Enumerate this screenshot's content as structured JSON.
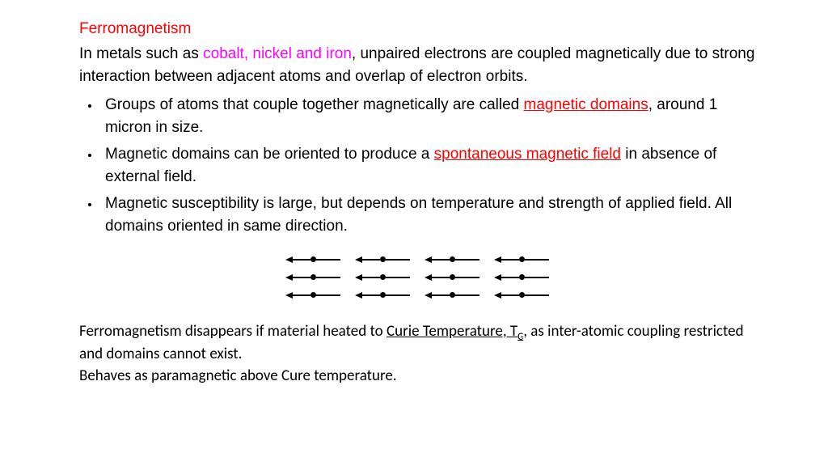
{
  "title": "Ferromagnetism",
  "intro_pre": "In metals such as ",
  "intro_metals": "cobalt, nickel and iron",
  "intro_post": ", unpaired electrons are coupled magnetically due to strong interaction between adjacent atoms and overlap of electron orbits.",
  "bullets": [
    {
      "pre": "Groups of atoms that couple together magnetically are called ",
      "link": "magnetic domains",
      "post": ", around 1 micron in size."
    },
    {
      "pre": "Magnetic domains can be oriented to produce a ",
      "link": "spontaneous magnetic field",
      "post": " in absence of external field."
    },
    {
      "pre": "Magnetic susceptibility is large, but depends on temperature and strength of applied field. All domains oriented in same direction.",
      "link": "",
      "post": ""
    }
  ],
  "diagram": {
    "rows": 3,
    "arrows_per_row": 4,
    "direction": "left",
    "shaft_color": "#000000",
    "dot_color": "#000000",
    "row_gap": 14,
    "arrow_gap": 18
  },
  "footer_pre": "Ferromagnetism disappears if material heated to ",
  "footer_curie": "Curie Temperature, T",
  "footer_curie_sub": "C",
  "footer_post": ", as inter-atomic coupling restricted and domains cannot exist.",
  "footer_line2": "Behaves as paramagnetic above Cure temperature."
}
